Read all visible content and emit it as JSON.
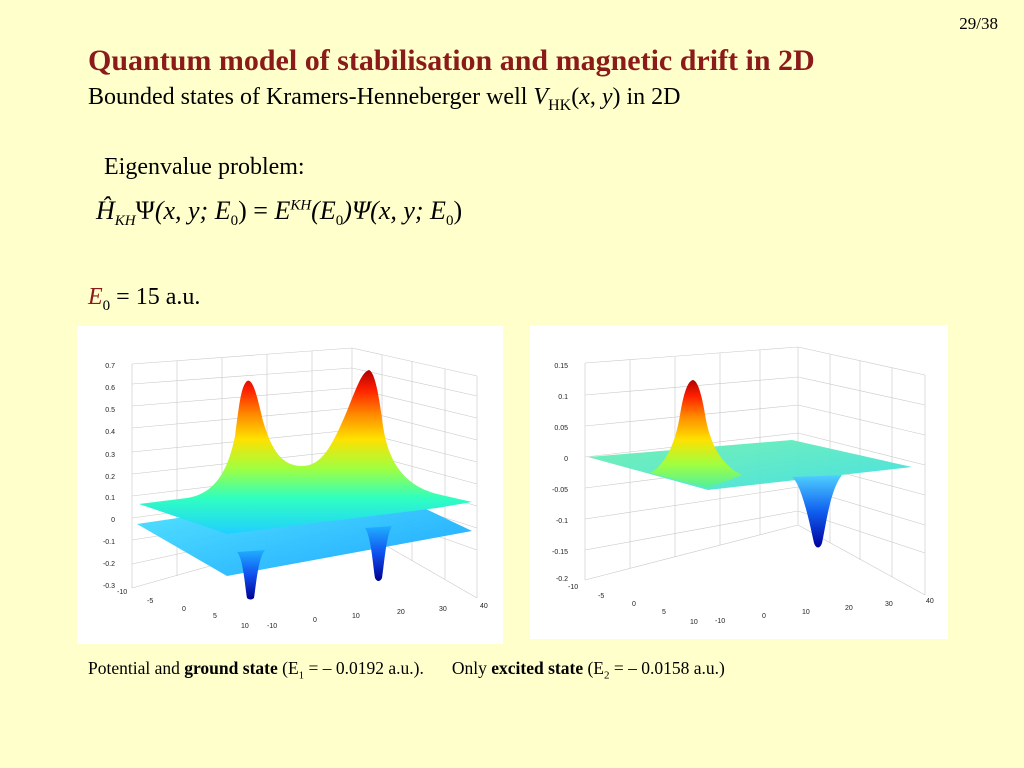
{
  "page_number": "29/38",
  "title": "Quantum model of stabilisation and magnetic drift in 2D",
  "subtitle": {
    "prefix": "Bounded states of Kramers-Henneberger well ",
    "V": "V",
    "sub": "HK",
    "args_open": "(",
    "x": "x",
    "comma": ", ",
    "y": "y",
    "args_close": ")",
    "suffix": " in 2D"
  },
  "eigen_label": "Eigenvalue problem:",
  "equation": {
    "H": "Ĥ",
    "H_sub": "KH",
    "psi": "Ψ",
    "lhs_args": "(x, y; E",
    "zero": "0",
    "close": ")",
    "equals": " = ",
    "E": "E",
    "E_sup": "KH",
    "mid_open": "(E",
    "rhs_psi_args": ")Ψ(x, y; E"
  },
  "e0": {
    "var": "E",
    "sub": "0",
    "rest": " = 15 a.u."
  },
  "left_plot": {
    "z_ticks": [
      "0.7",
      "0.6",
      "0.5",
      "0.4",
      "0.3",
      "0.2",
      "0.1",
      "0",
      "-0.1",
      "-0.2",
      "-0.3"
    ],
    "y_ticks": [
      "-10",
      "-5",
      "0",
      "5",
      "10"
    ],
    "x_ticks": [
      "-10",
      "0",
      "10",
      "20",
      "30",
      "40"
    ]
  },
  "right_plot": {
    "z_ticks": [
      "0.15",
      "0.1",
      "0.05",
      "0",
      "-0.05",
      "-0.1",
      "-0.15",
      "-0.2"
    ],
    "y_ticks": [
      "-10",
      "-5",
      "0",
      "5",
      "10"
    ],
    "x_ticks": [
      "-10",
      "0",
      "10",
      "20",
      "30",
      "40"
    ]
  },
  "captions": {
    "left_pre": "Potential and ",
    "left_bold": "ground state",
    "left_mid": " (E",
    "left_sub": "1",
    "left_post": " = – 0.0192 a.u.).",
    "right_pre": "Only ",
    "right_bold": "excited state",
    "right_mid": " (E",
    "right_sub": "2",
    "right_post": " = – 0.0158 a.u.)"
  },
  "colors": {
    "background": "#ffffcc",
    "title": "#8b1a1a",
    "accent_var": "#8b1a1a"
  }
}
